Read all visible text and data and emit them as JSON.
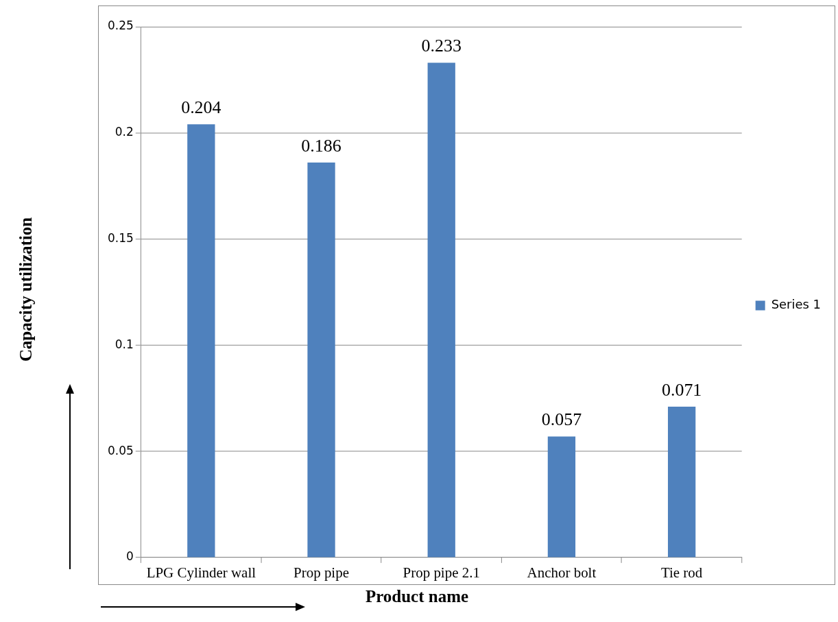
{
  "chart_data": {
    "type": "bar",
    "xlabel": "Product name",
    "ylabel": "Capacity utilization",
    "categories": [
      "LPG Cylinder wall",
      "Prop pipe",
      "Prop pipe 2.1",
      "Anchor bolt",
      "Tie rod"
    ],
    "series": [
      {
        "name": "Series 1",
        "color": "#4f81bd",
        "values": [
          0.204,
          0.186,
          0.233,
          0.057,
          0.071
        ]
      }
    ],
    "ylim": [
      0,
      0.25
    ],
    "yticks": [
      0,
      0.05,
      0.1,
      0.15,
      0.2,
      0.25
    ],
    "grid": "y",
    "legend": "right",
    "data_labels": true
  }
}
